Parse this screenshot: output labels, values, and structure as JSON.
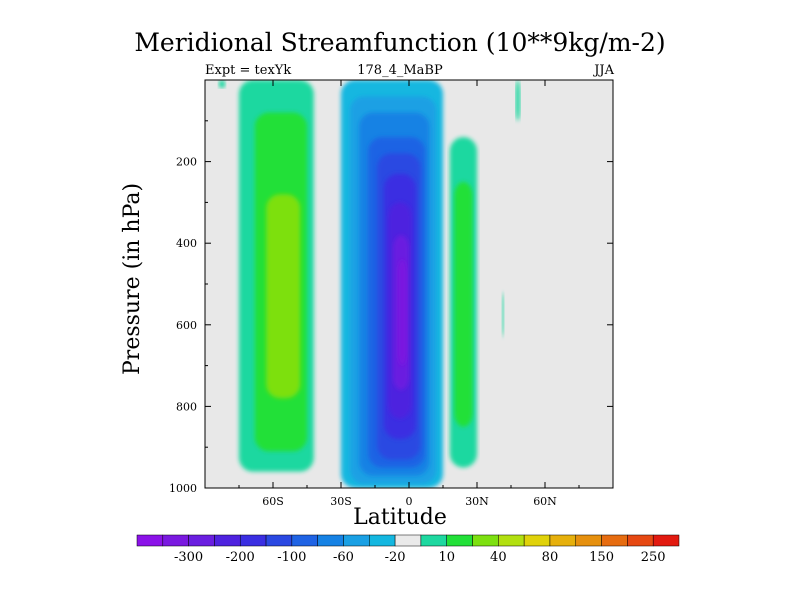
{
  "chart_data": {
    "type": "heatmap",
    "title": "Meridional Streamfunction (10**9kg/m-2)",
    "left_string": "Expt = texYk",
    "center_string": "178_4_MaBP",
    "right_string": "JJA",
    "xlabel": "Latitude",
    "ylabel": "Pressure (in hPa)",
    "x_range": [
      -90,
      90
    ],
    "y_range": [
      1000,
      0
    ],
    "x_ticks": [
      {
        "value": -60,
        "label": "60S"
      },
      {
        "value": -30,
        "label": "30S"
      },
      {
        "value": 0,
        "label": "0"
      },
      {
        "value": 30,
        "label": "30N"
      },
      {
        "value": 60,
        "label": "60N"
      }
    ],
    "y_ticks": [
      {
        "value": 200,
        "label": "200"
      },
      {
        "value": 400,
        "label": "400"
      },
      {
        "value": 600,
        "label": "600"
      },
      {
        "value": 800,
        "label": "800"
      },
      {
        "value": 1000,
        "label": "1000"
      }
    ],
    "background_color": "#e8e8e8",
    "colorbar": {
      "colors": [
        "#8b12e8",
        "#7a19e0",
        "#6a1ee0",
        "#4e22df",
        "#3a2ee2",
        "#2a48e2",
        "#1f63e4",
        "#1682e4",
        "#1aa0e4",
        "#14b7e0",
        "#eaeaea",
        "#1ed8a0",
        "#22e038",
        "#7de010",
        "#b2e010",
        "#e0d20a",
        "#e6b00c",
        "#e6900e",
        "#e66c10",
        "#e64812",
        "#e21a10"
      ],
      "labels": [
        {
          "after": 1,
          "label": "-300"
        },
        {
          "after": 3,
          "label": "-200"
        },
        {
          "after": 5,
          "label": "-100"
        },
        {
          "after": 7,
          "label": "-60"
        },
        {
          "after": 9,
          "label": "-20"
        },
        {
          "after": 11,
          "label": "10"
        },
        {
          "after": 13,
          "label": "40"
        },
        {
          "after": 15,
          "label": "80"
        },
        {
          "after": 17,
          "label": "150"
        },
        {
          "after": 19,
          "label": "250"
        }
      ]
    },
    "cells": [
      {
        "name": "southern-positive-outer",
        "color": "#1ed8a0",
        "lat": [
          -75,
          -42
        ],
        "p": [
          0,
          960
        ]
      },
      {
        "name": "southern-positive-40",
        "color": "#22e038",
        "lat": [
          -68,
          -45
        ],
        "p": [
          80,
          910
        ]
      },
      {
        "name": "southern-positive-60",
        "color": "#7de010",
        "lat": [
          -63,
          -48
        ],
        "p": [
          280,
          780
        ]
      },
      {
        "name": "hadley-neg-20",
        "color": "#14b7e0",
        "lat": [
          -30,
          15
        ],
        "p": [
          0,
          1000
        ]
      },
      {
        "name": "hadley-neg-40",
        "color": "#1aa0e4",
        "lat": [
          -26,
          12
        ],
        "p": [
          40,
          990
        ]
      },
      {
        "name": "hadley-neg-60",
        "color": "#1682e4",
        "lat": [
          -22,
          9
        ],
        "p": [
          80,
          970
        ]
      },
      {
        "name": "hadley-neg-80",
        "color": "#1f63e4",
        "lat": [
          -18,
          7
        ],
        "p": [
          140,
          950
        ]
      },
      {
        "name": "hadley-neg-100",
        "color": "#2a48e2",
        "lat": [
          -14,
          5
        ],
        "p": [
          180,
          930
        ]
      },
      {
        "name": "hadley-neg-150",
        "color": "#3a2ee2",
        "lat": [
          -11,
          3
        ],
        "p": [
          230,
          880
        ]
      },
      {
        "name": "hadley-neg-200",
        "color": "#4e22df",
        "lat": [
          -9,
          1
        ],
        "p": [
          300,
          830
        ]
      },
      {
        "name": "hadley-neg-250",
        "color": "#6a1ee0",
        "lat": [
          -7,
          0
        ],
        "p": [
          380,
          760
        ]
      },
      {
        "name": "hadley-neg-300",
        "color": "#7a19e0",
        "lat": [
          -5,
          -1
        ],
        "p": [
          440,
          700
        ]
      },
      {
        "name": "northern-positive-outer",
        "color": "#1ed8a0",
        "lat": [
          18,
          30
        ],
        "p": [
          140,
          950
        ]
      },
      {
        "name": "northern-positive-40",
        "color": "#22e038",
        "lat": [
          20,
          28
        ],
        "p": [
          250,
          850
        ]
      },
      {
        "name": "small-positive-topleft",
        "color": "#1ed8a0",
        "lat": [
          -84,
          -81
        ],
        "p": [
          0,
          20
        ]
      },
      {
        "name": "small-positive-topright",
        "color": "#1ed8a0",
        "lat": [
          47,
          49
        ],
        "p": [
          0,
          100
        ]
      },
      {
        "name": "small-positive-midright",
        "color": "#1ed8a0",
        "lat": [
          41,
          42
        ],
        "p": [
          520,
          630
        ]
      }
    ]
  }
}
